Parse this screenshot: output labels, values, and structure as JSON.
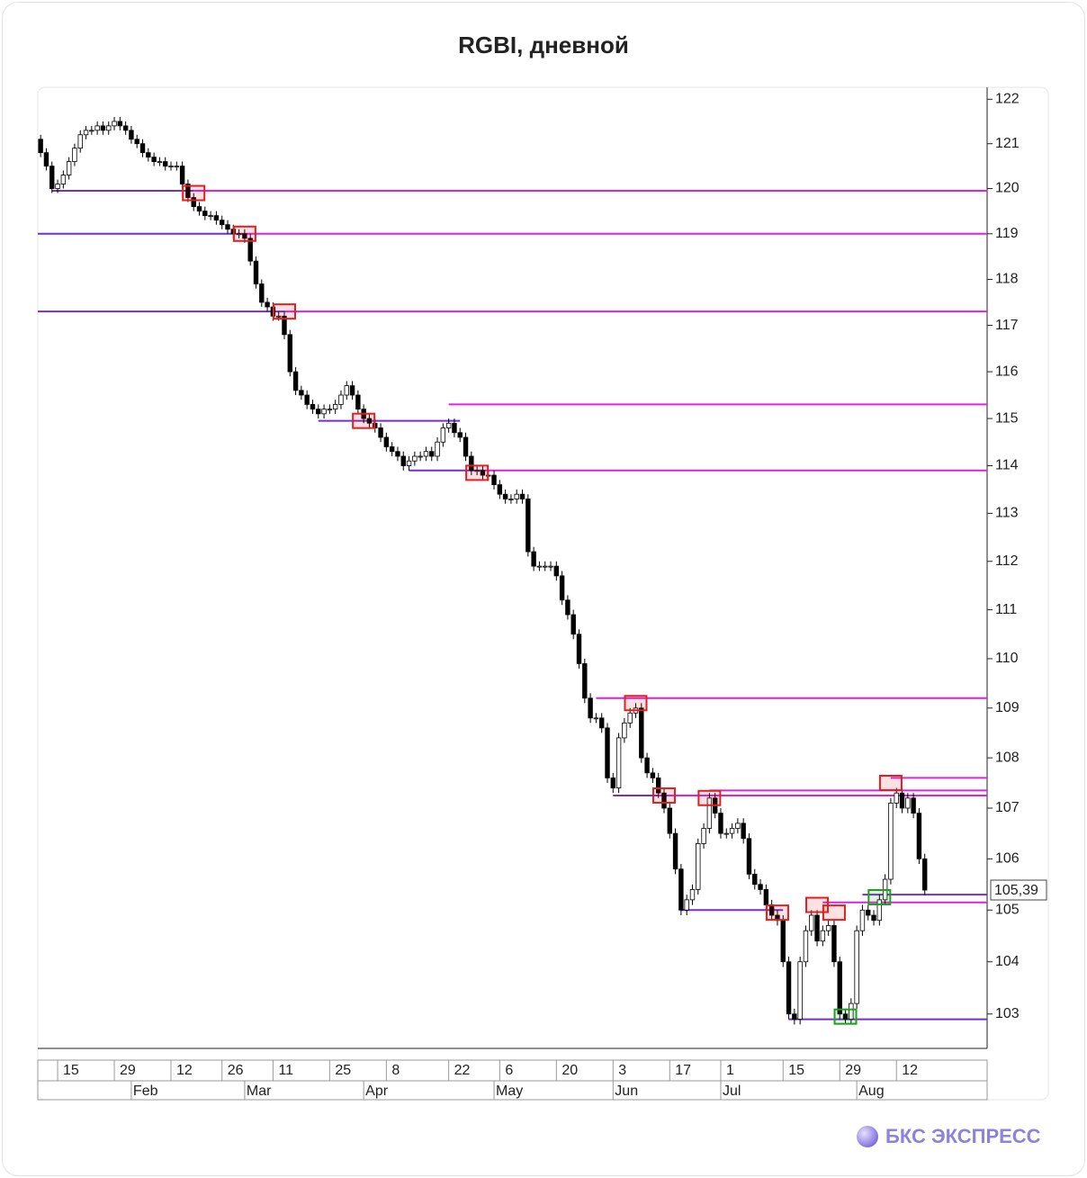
{
  "chart_data": {
    "type": "candlestick",
    "title": "RGBI, дневной",
    "open": [
      121.1,
      120.8,
      120.5,
      120.0,
      120.1,
      120.3,
      120.6,
      120.9,
      121.2,
      121.3,
      121.3,
      121.4,
      121.3,
      121.4,
      121.5,
      121.4,
      121.3,
      121.1,
      121.0,
      120.8,
      120.7,
      120.6,
      120.6,
      120.5,
      120.5,
      120.5,
      120.1,
      119.8,
      119.6,
      119.5,
      119.4,
      119.4,
      119.3,
      119.2,
      119.1,
      119.0,
      119.0,
      118.9,
      118.4,
      117.9,
      117.5,
      117.4,
      117.2,
      117.2,
      116.8,
      116.0,
      115.6,
      115.5,
      115.3,
      115.2,
      115.1,
      115.2,
      115.2,
      115.3,
      115.5,
      115.7,
      115.5,
      115.2,
      115.0,
      114.9,
      114.8,
      114.6,
      114.4,
      114.3,
      114.2,
      114.0,
      114.1,
      114.2,
      114.2,
      114.3,
      114.2,
      114.5,
      114.8,
      114.9,
      114.7,
      114.6,
      114.2,
      113.9,
      113.9,
      113.8,
      113.8,
      113.6,
      113.4,
      113.3,
      113.3,
      113.4,
      113.3,
      112.2,
      111.9,
      111.9,
      111.9,
      111.9,
      111.7,
      111.2,
      110.9,
      110.5,
      109.9,
      109.2,
      108.8,
      108.8,
      108.6,
      107.6,
      107.4,
      108.4,
      108.7,
      108.9,
      109.0,
      108.0,
      107.7,
      107.6,
      107.3,
      107.0,
      106.5,
      105.8,
      105.0,
      105.2,
      105.4,
      106.3,
      106.6,
      107.2,
      106.9,
      106.5,
      106.5,
      106.6,
      106.7,
      106.4,
      105.7,
      105.5,
      105.4,
      105.1,
      104.9,
      104.8,
      104.0,
      103.0,
      102.9,
      104.0,
      104.6,
      104.9,
      104.4,
      104.6,
      104.7,
      104.0,
      103.0,
      102.9,
      103.2,
      104.6,
      105.0,
      104.9,
      104.8,
      105.2,
      105.6,
      107.1,
      107.3,
      107.0,
      107.2,
      106.9,
      106.0
    ],
    "high": [
      121.2,
      120.9,
      120.6,
      120.2,
      120.4,
      120.7,
      121.0,
      121.3,
      121.4,
      121.4,
      121.5,
      121.5,
      121.5,
      121.6,
      121.6,
      121.5,
      121.4,
      121.2,
      121.1,
      120.9,
      120.8,
      120.7,
      120.7,
      120.6,
      120.6,
      120.6,
      120.2,
      119.9,
      119.7,
      119.6,
      119.5,
      119.5,
      119.4,
      119.3,
      119.2,
      119.1,
      119.1,
      119.0,
      118.5,
      118.0,
      117.6,
      117.5,
      117.3,
      117.3,
      116.9,
      116.1,
      115.7,
      115.6,
      115.4,
      115.3,
      115.3,
      115.3,
      115.4,
      115.6,
      115.8,
      115.8,
      115.6,
      115.3,
      115.1,
      115.0,
      114.9,
      114.7,
      114.5,
      114.4,
      114.3,
      114.2,
      114.3,
      114.3,
      114.4,
      114.4,
      114.6,
      114.9,
      115.0,
      115.0,
      114.8,
      114.7,
      114.3,
      114.0,
      114.0,
      113.9,
      113.9,
      113.7,
      113.5,
      113.4,
      113.5,
      113.5,
      113.4,
      112.3,
      112.0,
      112.0,
      112.0,
      112.0,
      111.8,
      111.3,
      111.0,
      110.6,
      110.0,
      109.3,
      108.9,
      108.9,
      108.7,
      107.7,
      108.5,
      108.8,
      109.0,
      109.1,
      109.1,
      108.1,
      107.8,
      107.7,
      107.4,
      107.1,
      106.6,
      105.9,
      105.3,
      105.5,
      106.4,
      106.7,
      107.3,
      107.3,
      107.0,
      106.6,
      106.7,
      106.8,
      106.8,
      106.5,
      105.8,
      105.6,
      105.5,
      105.2,
      105.0,
      104.9,
      104.1,
      103.1,
      104.1,
      104.7,
      105.0,
      105.0,
      104.7,
      104.8,
      104.8,
      104.1,
      103.1,
      103.3,
      104.7,
      105.1,
      105.1,
      105.0,
      105.3,
      105.7,
      107.2,
      107.4,
      107.4,
      107.3,
      107.3,
      107.0,
      106.1
    ],
    "low": [
      120.7,
      120.4,
      119.9,
      119.9,
      120.0,
      120.2,
      120.5,
      120.8,
      121.1,
      121.2,
      121.2,
      121.2,
      121.2,
      121.3,
      121.3,
      121.2,
      121.0,
      120.9,
      120.7,
      120.6,
      120.5,
      120.5,
      120.4,
      120.4,
      120.4,
      120.0,
      119.7,
      119.5,
      119.4,
      119.3,
      119.3,
      119.2,
      119.1,
      119.0,
      118.9,
      118.9,
      118.8,
      118.3,
      117.8,
      117.4,
      117.3,
      117.1,
      117.1,
      116.7,
      115.9,
      115.5,
      115.4,
      115.2,
      115.1,
      115.0,
      115.0,
      115.1,
      115.1,
      115.2,
      115.4,
      115.4,
      115.1,
      114.9,
      114.8,
      114.7,
      114.5,
      114.3,
      114.2,
      114.1,
      113.9,
      113.9,
      114.0,
      114.1,
      114.1,
      114.1,
      114.1,
      114.4,
      114.7,
      114.6,
      114.5,
      114.1,
      113.8,
      113.8,
      113.7,
      113.7,
      113.5,
      113.3,
      113.2,
      113.2,
      113.2,
      113.2,
      112.1,
      111.8,
      111.8,
      111.8,
      111.8,
      111.6,
      111.1,
      110.8,
      110.4,
      109.8,
      109.1,
      108.7,
      108.7,
      108.5,
      107.5,
      107.3,
      107.3,
      108.3,
      108.6,
      108.8,
      107.9,
      107.6,
      107.5,
      107.2,
      106.9,
      106.4,
      105.7,
      104.9,
      104.9,
      105.1,
      105.3,
      106.2,
      106.5,
      106.8,
      106.4,
      106.4,
      106.4,
      106.5,
      106.3,
      105.6,
      105.4,
      105.3,
      105.0,
      104.8,
      104.7,
      103.9,
      102.9,
      102.8,
      102.8,
      103.9,
      104.5,
      104.3,
      104.3,
      104.5,
      103.9,
      102.9,
      102.8,
      102.8,
      103.1,
      104.5,
      104.8,
      104.7,
      104.7,
      105.1,
      105.5,
      107.0,
      106.9,
      106.9,
      106.8,
      105.9,
      105.29
    ],
    "close": [
      120.8,
      120.5,
      120.0,
      120.1,
      120.3,
      120.6,
      120.9,
      121.2,
      121.3,
      121.3,
      121.4,
      121.3,
      121.4,
      121.5,
      121.4,
      121.3,
      121.1,
      121.0,
      120.8,
      120.7,
      120.6,
      120.6,
      120.5,
      120.5,
      120.5,
      120.1,
      119.8,
      119.6,
      119.5,
      119.4,
      119.4,
      119.3,
      119.2,
      119.1,
      119.0,
      119.0,
      118.9,
      118.4,
      117.9,
      117.5,
      117.4,
      117.2,
      117.2,
      116.8,
      116.0,
      115.6,
      115.5,
      115.3,
      115.2,
      115.1,
      115.2,
      115.2,
      115.3,
      115.5,
      115.7,
      115.5,
      115.2,
      115.0,
      114.9,
      114.8,
      114.6,
      114.4,
      114.3,
      114.2,
      114.0,
      114.1,
      114.2,
      114.2,
      114.3,
      114.2,
      114.5,
      114.8,
      114.9,
      114.7,
      114.6,
      114.2,
      113.9,
      113.9,
      113.8,
      113.8,
      113.6,
      113.4,
      113.3,
      113.3,
      113.4,
      113.3,
      112.2,
      111.9,
      111.9,
      111.9,
      111.9,
      111.7,
      111.2,
      110.9,
      110.5,
      109.9,
      109.2,
      108.8,
      108.8,
      108.6,
      107.6,
      107.4,
      108.4,
      108.7,
      108.9,
      109.0,
      108.0,
      107.7,
      107.6,
      107.3,
      107.0,
      106.5,
      105.8,
      105.0,
      105.2,
      105.4,
      106.3,
      106.6,
      107.2,
      106.9,
      106.5,
      106.5,
      106.6,
      106.7,
      106.4,
      105.7,
      105.5,
      105.4,
      105.1,
      104.9,
      104.8,
      104.0,
      103.0,
      102.9,
      104.0,
      104.6,
      104.9,
      104.4,
      104.6,
      104.7,
      104.0,
      103.0,
      102.9,
      103.2,
      104.6,
      105.0,
      104.9,
      104.8,
      105.2,
      105.6,
      107.1,
      107.3,
      107.0,
      107.2,
      106.9,
      106.0,
      105.39
    ],
    "last_value_label": "105,39",
    "up_color": "#ffffff",
    "down_color": "#000000",
    "log_scale": true,
    "xlim": [
      -0.5,
      167
    ],
    "ylim": [
      102.38,
      122.27
    ],
    "yticks": [
      103,
      104,
      105,
      106,
      107,
      108,
      109,
      110,
      111,
      112,
      113,
      114,
      115,
      116,
      117,
      118,
      119,
      120,
      121,
      122
    ],
    "xticks": [
      {
        "value": 3,
        "label": "15"
      },
      {
        "value": 13,
        "label": "29"
      },
      {
        "value": 23,
        "label": "12"
      },
      {
        "value": 32,
        "label": "26"
      },
      {
        "value": 41,
        "label": "11"
      },
      {
        "value": 51,
        "label": "25"
      },
      {
        "value": 61,
        "label": "8"
      },
      {
        "value": 72,
        "label": "22"
      },
      {
        "value": 81,
        "label": "6"
      },
      {
        "value": 91,
        "label": "20"
      },
      {
        "value": 101,
        "label": "3"
      },
      {
        "value": 111,
        "label": "17"
      },
      {
        "value": 120,
        "label": "1"
      },
      {
        "value": 131,
        "label": "15"
      },
      {
        "value": 141,
        "label": "29"
      },
      {
        "value": 151,
        "label": "12"
      }
    ],
    "month_ticks": [
      {
        "value": 16,
        "label": "Feb"
      },
      {
        "value": 36,
        "label": "Mar"
      },
      {
        "value": 57,
        "label": "Apr"
      },
      {
        "value": 80,
        "label": "May"
      },
      {
        "value": 101,
        "label": "Jun"
      },
      {
        "value": 120,
        "label": "Jul"
      },
      {
        "value": 144,
        "label": "Aug"
      }
    ],
    "levels": [
      {
        "value": 119.95,
        "from": 2,
        "to": 27,
        "color": "#7030d0"
      },
      {
        "value": 119.95,
        "from": 27,
        "to": 167,
        "color": "#e020e0"
      },
      {
        "value": 119.0,
        "from": -0.5,
        "to": 36,
        "color": "#7030d0"
      },
      {
        "value": 119.0,
        "from": 36,
        "to": 167,
        "color": "#e020e0"
      },
      {
        "value": 117.3,
        "from": -0.5,
        "to": 43,
        "color": "#7030d0"
      },
      {
        "value": 117.3,
        "from": 43,
        "to": 167,
        "color": "#e020e0"
      },
      {
        "value": 114.95,
        "from": 49,
        "to": 74,
        "color": "#7030d0"
      },
      {
        "value": 115.3,
        "from": 72,
        "to": 167,
        "color": "#e020e0"
      },
      {
        "value": 113.9,
        "from": 65,
        "to": 78,
        "color": "#7030d0"
      },
      {
        "value": 113.9,
        "from": 78,
        "to": 167,
        "color": "#e020e0"
      },
      {
        "value": 109.2,
        "from": 98,
        "to": 167,
        "color": "#e020e0"
      },
      {
        "value": 107.25,
        "from": 101,
        "to": 109,
        "color": "#7030d0"
      },
      {
        "value": 107.25,
        "from": 109,
        "to": 167,
        "color": "#e020e0"
      },
      {
        "value": 107.35,
        "from": 118,
        "to": 167,
        "color": "#e020e0"
      },
      {
        "value": 107.6,
        "from": 150,
        "to": 167,
        "color": "#e020e0"
      },
      {
        "value": 105.0,
        "from": 113,
        "to": 131,
        "color": "#7030d0"
      },
      {
        "value": 105.15,
        "from": 138,
        "to": 167,
        "color": "#e020e0"
      },
      {
        "value": 105.3,
        "from": 145,
        "to": 167,
        "color": "#7030d0"
      },
      {
        "value": 102.9,
        "from": 132,
        "to": 167,
        "color": "#7030d0"
      }
    ],
    "markers": [
      {
        "index": 27,
        "value": 119.9,
        "color": "#e02020"
      },
      {
        "index": 36,
        "value": 119.0,
        "color": "#e02020"
      },
      {
        "index": 43,
        "value": 117.3,
        "color": "#e02020"
      },
      {
        "index": 57,
        "value": 114.95,
        "color": "#e02020"
      },
      {
        "index": 77,
        "value": 113.85,
        "color": "#e02020"
      },
      {
        "index": 105,
        "value": 109.1,
        "color": "#e02020"
      },
      {
        "index": 110,
        "value": 107.25,
        "color": "#e02020"
      },
      {
        "index": 118,
        "value": 107.2,
        "color": "#e02020"
      },
      {
        "index": 130,
        "value": 104.95,
        "color": "#e02020"
      },
      {
        "index": 137,
        "value": 105.1,
        "color": "#e02020"
      },
      {
        "index": 140,
        "value": 104.95,
        "color": "#e02020"
      },
      {
        "index": 150,
        "value": 107.5,
        "color": "#e02020"
      },
      {
        "index": 142,
        "value": 102.95,
        "color": "#20a020"
      },
      {
        "index": 148,
        "value": 105.25,
        "color": "#20a020"
      }
    ]
  },
  "brand": "БКС ЭКСПРЕСС"
}
